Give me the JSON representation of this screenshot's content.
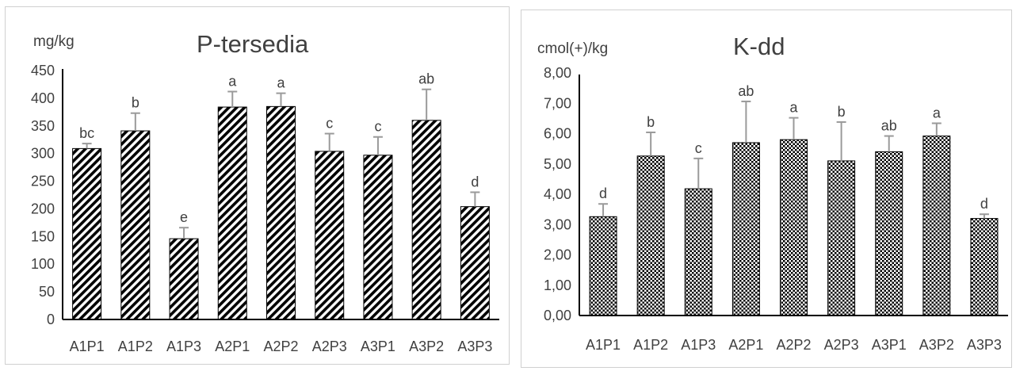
{
  "chart_data": [
    {
      "type": "bar",
      "title": "P-tersedia",
      "ylabel": "mg/kg",
      "categories": [
        "A1P1",
        "A1P2",
        "A1P3",
        "A2P1",
        "A2P2",
        "A2P3",
        "A3P1",
        "A3P2",
        "A3P3"
      ],
      "values": [
        309,
        341,
        146,
        384,
        385,
        304,
        297,
        360,
        204
      ],
      "errors": [
        9,
        32,
        20,
        28,
        24,
        32,
        33,
        56,
        26
      ],
      "significance": [
        "bc",
        "b",
        "e",
        "a",
        "a",
        "c",
        "c",
        "ab",
        "d"
      ],
      "ylim": [
        0,
        450
      ],
      "yticks": [
        "0",
        "50",
        "100",
        "150",
        "200",
        "250",
        "300",
        "350",
        "400",
        "450"
      ],
      "pattern": "diagonal-stripes",
      "grid": false
    },
    {
      "type": "bar",
      "title": "K-dd",
      "ylabel": "cmol(+)/kg",
      "categories": [
        "A1P1",
        "A1P2",
        "A1P3",
        "A2P1",
        "A2P2",
        "A2P3",
        "A3P1",
        "A3P2",
        "A3P3"
      ],
      "values": [
        3.26,
        5.26,
        4.18,
        5.7,
        5.8,
        5.1,
        5.4,
        5.92,
        3.2
      ],
      "errors": [
        0.42,
        0.78,
        1.0,
        1.36,
        0.72,
        1.28,
        0.52,
        0.42,
        0.14
      ],
      "significance": [
        "d",
        "b",
        "c",
        "ab",
        "a",
        "b",
        "ab",
        "a",
        "d"
      ],
      "ylim": [
        0,
        8
      ],
      "yticks": [
        "0,00",
        "1,00",
        "2,00",
        "3,00",
        "4,00",
        "5,00",
        "6,00",
        "7,00",
        "8,00"
      ],
      "pattern": "checker",
      "grid": false
    }
  ]
}
